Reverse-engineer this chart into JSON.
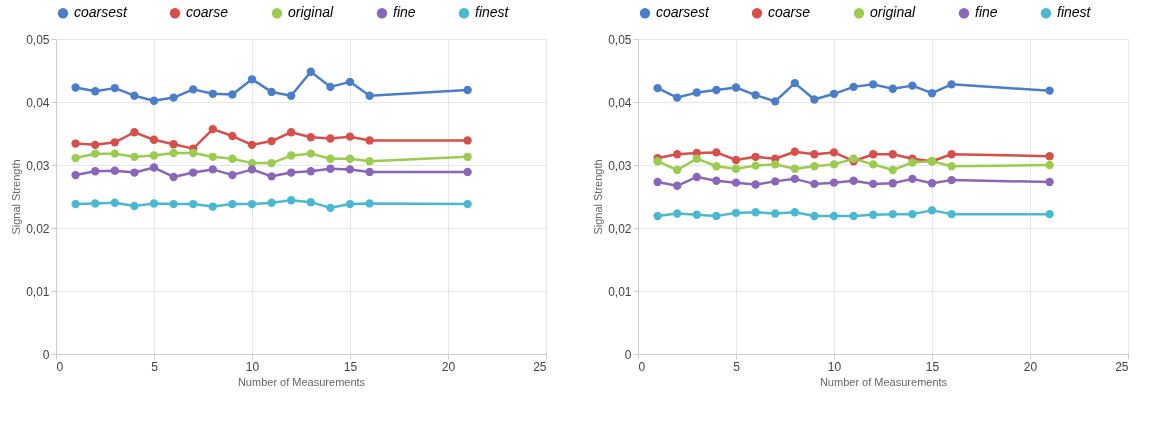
{
  "chart_data": [
    {
      "type": "line",
      "xlabel": "Number of Measurements",
      "ylabel": "Signal Strength",
      "x": [
        1,
        2,
        3,
        4,
        5,
        6,
        7,
        8,
        9,
        10,
        11,
        12,
        13,
        14,
        15,
        16,
        21
      ],
      "series": [
        {
          "name": "coarsest",
          "color": "#4a7ec8",
          "values": [
            0.0423,
            0.0417,
            0.0422,
            0.041,
            0.0402,
            0.0407,
            0.042,
            0.0413,
            0.0412,
            0.0436,
            0.0416,
            0.041,
            0.0448,
            0.0424,
            0.0432,
            0.041,
            0.0419
          ]
        },
        {
          "name": "coarse",
          "color": "#d64f4b",
          "values": [
            0.0334,
            0.0332,
            0.0336,
            0.0352,
            0.034,
            0.0333,
            0.0326,
            0.0357,
            0.0346,
            0.0332,
            0.0338,
            0.0352,
            0.0344,
            0.0342,
            0.0345,
            0.0339,
            0.0339
          ]
        },
        {
          "name": "original",
          "color": "#9bcb4f",
          "values": [
            0.0311,
            0.0318,
            0.0318,
            0.0313,
            0.0315,
            0.0319,
            0.0319,
            0.0313,
            0.031,
            0.0303,
            0.0303,
            0.0315,
            0.0318,
            0.031,
            0.031,
            0.0306,
            0.0313
          ]
        },
        {
          "name": "fine",
          "color": "#8a66b8",
          "values": [
            0.0284,
            0.029,
            0.0291,
            0.0288,
            0.0296,
            0.0281,
            0.0288,
            0.0293,
            0.0284,
            0.0293,
            0.0282,
            0.0288,
            0.029,
            0.0294,
            0.0293,
            0.0289,
            0.0289
          ]
        },
        {
          "name": "finest",
          "color": "#4bb8d2",
          "values": [
            0.0238,
            0.0239,
            0.024,
            0.0235,
            0.0239,
            0.0238,
            0.0238,
            0.0234,
            0.0238,
            0.0238,
            0.024,
            0.0244,
            0.0241,
            0.0232,
            0.0238,
            0.0239,
            0.0238
          ]
        }
      ],
      "xlim": [
        0,
        25
      ],
      "xticks": [
        0,
        5,
        10,
        15,
        20,
        25
      ],
      "ylim": [
        0,
        0.05
      ],
      "yticks": [
        0,
        {
          "value": 0.01,
          "label": "0,01"
        },
        {
          "value": 0.02,
          "label": "0,02"
        },
        {
          "value": 0.03,
          "label": "0,03"
        },
        {
          "value": 0.04,
          "label": "0,04"
        },
        {
          "value": 0.05,
          "label": "0,05"
        }
      ],
      "grid": true,
      "legend": "top",
      "marker": "circle",
      "line_style": "solid"
    },
    {
      "type": "line",
      "xlabel": "Number of Measurements",
      "ylabel": "Signal Strength",
      "x": [
        1,
        2,
        3,
        4,
        5,
        6,
        7,
        8,
        9,
        10,
        11,
        12,
        13,
        14,
        15,
        16,
        21
      ],
      "series": [
        {
          "name": "coarsest",
          "color": "#4a7ec8",
          "values": [
            0.0422,
            0.0407,
            0.0415,
            0.0419,
            0.0423,
            0.0411,
            0.0401,
            0.043,
            0.0404,
            0.0413,
            0.0424,
            0.0428,
            0.0421,
            0.0426,
            0.0414,
            0.0428,
            0.0418
          ]
        },
        {
          "name": "coarse",
          "color": "#d64f4b",
          "values": [
            0.0311,
            0.0317,
            0.0319,
            0.032,
            0.0308,
            0.0313,
            0.031,
            0.0321,
            0.0317,
            0.032,
            0.0306,
            0.0317,
            0.0317,
            0.031,
            0.0306,
            0.0317,
            0.0314
          ]
        },
        {
          "name": "original",
          "color": "#9bcb4f",
          "values": [
            0.0306,
            0.0292,
            0.031,
            0.0298,
            0.0294,
            0.0299,
            0.0301,
            0.0294,
            0.0298,
            0.0301,
            0.031,
            0.0301,
            0.0292,
            0.0304,
            0.0306,
            0.0298,
            0.03
          ]
        },
        {
          "name": "fine",
          "color": "#8a66b8",
          "values": [
            0.0273,
            0.0267,
            0.0281,
            0.0275,
            0.0272,
            0.0269,
            0.0274,
            0.0278,
            0.027,
            0.0272,
            0.0275,
            0.027,
            0.0271,
            0.0278,
            0.0271,
            0.0276,
            0.0273
          ]
        },
        {
          "name": "finest",
          "color": "#4bb8d2",
          "values": [
            0.0219,
            0.0223,
            0.0221,
            0.0219,
            0.0224,
            0.0225,
            0.0223,
            0.0225,
            0.0219,
            0.0219,
            0.0219,
            0.0221,
            0.0222,
            0.0222,
            0.0228,
            0.0222,
            0.0222
          ]
        }
      ],
      "xlim": [
        0,
        25
      ],
      "xticks": [
        0,
        5,
        10,
        15,
        20,
        25
      ],
      "ylim": [
        0,
        0.05
      ],
      "yticks": [
        0,
        {
          "value": 0.01,
          "label": "0,01"
        },
        {
          "value": 0.02,
          "label": "0,02"
        },
        {
          "value": 0.03,
          "label": "0,03"
        },
        {
          "value": 0.04,
          "label": "0,04"
        },
        {
          "value": 0.05,
          "label": "0,05"
        }
      ],
      "grid": true,
      "legend": "top",
      "marker": "circle",
      "line_style": "solid"
    }
  ]
}
